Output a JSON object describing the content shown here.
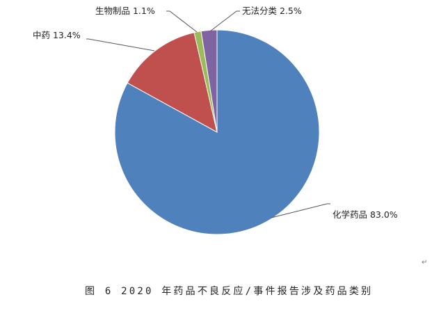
{
  "chart_data": {
    "type": "pie",
    "title": "",
    "slices": [
      {
        "label": "化学药品",
        "value": 83.0,
        "text": "化学药品 83.0%",
        "color": "#4f81bd"
      },
      {
        "label": "中药",
        "value": 13.4,
        "text": "中药 13.4%",
        "color": "#c0504d"
      },
      {
        "label": "生物制品",
        "value": 1.1,
        "text": "生物制品 1.1%",
        "color": "#9bbb59"
      },
      {
        "label": "无法分类",
        "value": 2.5,
        "text": "无法分类 2.5%",
        "color": "#8064a2"
      }
    ],
    "start_angle": "12 o'clock",
    "direction": "clockwise"
  },
  "caption": "图 6 2020 年药品不良反应/事件报告涉及药品类别",
  "paragraph_mark": "↵"
}
